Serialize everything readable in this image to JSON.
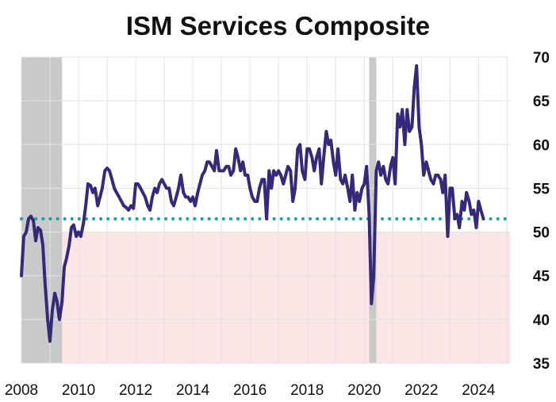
{
  "chart_data": {
    "type": "line",
    "title": "ISM Services Composite",
    "xlabel": "",
    "ylabel": "",
    "xlim": [
      2008.0,
      2025.1
    ],
    "ylim": [
      35,
      70
    ],
    "x_ticks": [
      "2008",
      "2010",
      "2012",
      "2014",
      "2016",
      "2018",
      "2020",
      "2022",
      "2024"
    ],
    "y_ticks": [
      "70",
      "65",
      "60",
      "55",
      "50",
      "45",
      "40",
      "35"
    ],
    "y_axis_side": "right",
    "grid": "vertical and horizontal",
    "reference_line": {
      "value": 51.5,
      "style": "dotted",
      "color": "#1aa3a3"
    },
    "below_threshold_band": {
      "from": 35,
      "to": 50,
      "color": "#fbe6e6"
    },
    "recession_shading": [
      {
        "start": 2008.0,
        "end": 2009.42
      },
      {
        "start": 2020.17,
        "end": 2020.42
      }
    ],
    "series": [
      {
        "color": "#352a7a",
        "points": [
          [
            2008.0,
            45.0
          ],
          [
            2008.08,
            49.5
          ],
          [
            2008.17,
            50.0
          ],
          [
            2008.25,
            51.5
          ],
          [
            2008.33,
            51.8
          ],
          [
            2008.42,
            51.3
          ],
          [
            2008.5,
            49.0
          ],
          [
            2008.58,
            50.5
          ],
          [
            2008.67,
            50.2
          ],
          [
            2008.75,
            48.5
          ],
          [
            2008.83,
            44.0
          ],
          [
            2008.92,
            40.0
          ],
          [
            2009.0,
            37.5
          ],
          [
            2009.08,
            41.0
          ],
          [
            2009.17,
            43.0
          ],
          [
            2009.25,
            42.0
          ],
          [
            2009.33,
            40.0
          ],
          [
            2009.42,
            42.0
          ],
          [
            2009.5,
            46.0
          ],
          [
            2009.58,
            47.0
          ],
          [
            2009.67,
            48.5
          ],
          [
            2009.75,
            50.5
          ],
          [
            2009.83,
            50.8
          ],
          [
            2009.92,
            49.5
          ],
          [
            2010.0,
            50.0
          ],
          [
            2010.08,
            49.5
          ],
          [
            2010.17,
            51.0
          ],
          [
            2010.25,
            53.0
          ],
          [
            2010.33,
            55.5
          ],
          [
            2010.42,
            55.3
          ],
          [
            2010.5,
            54.5
          ],
          [
            2010.58,
            55.0
          ],
          [
            2010.67,
            53.0
          ],
          [
            2010.75,
            54.0
          ],
          [
            2010.83,
            55.0
          ],
          [
            2010.92,
            57.0
          ],
          [
            2011.0,
            57.3
          ],
          [
            2011.08,
            57.0
          ],
          [
            2011.17,
            56.0
          ],
          [
            2011.25,
            55.0
          ],
          [
            2011.33,
            54.5
          ],
          [
            2011.42,
            54.0
          ],
          [
            2011.5,
            53.5
          ],
          [
            2011.58,
            53.0
          ],
          [
            2011.67,
            52.8
          ],
          [
            2011.75,
            52.5
          ],
          [
            2011.83,
            53.0
          ],
          [
            2011.92,
            52.7
          ],
          [
            2012.0,
            55.5
          ],
          [
            2012.08,
            55.5
          ],
          [
            2012.17,
            55.0
          ],
          [
            2012.25,
            54.5
          ],
          [
            2012.33,
            54.0
          ],
          [
            2012.42,
            53.0
          ],
          [
            2012.5,
            52.5
          ],
          [
            2012.58,
            54.0
          ],
          [
            2012.67,
            55.0
          ],
          [
            2012.75,
            54.5
          ],
          [
            2012.83,
            55.5
          ],
          [
            2012.92,
            56.0
          ],
          [
            2013.0,
            55.5
          ],
          [
            2013.08,
            55.0
          ],
          [
            2013.17,
            55.0
          ],
          [
            2013.25,
            53.5
          ],
          [
            2013.33,
            53.0
          ],
          [
            2013.42,
            54.0
          ],
          [
            2013.5,
            55.0
          ],
          [
            2013.58,
            56.5
          ],
          [
            2013.67,
            54.5
          ],
          [
            2013.75,
            54.0
          ],
          [
            2013.83,
            54.0
          ],
          [
            2013.92,
            53.5
          ],
          [
            2014.0,
            54.0
          ],
          [
            2014.08,
            53.0
          ],
          [
            2014.17,
            54.5
          ],
          [
            2014.25,
            55.5
          ],
          [
            2014.33,
            56.5
          ],
          [
            2014.42,
            57.0
          ],
          [
            2014.5,
            58.0
          ],
          [
            2014.58,
            58.0
          ],
          [
            2014.67,
            57.5
          ],
          [
            2014.75,
            57.0
          ],
          [
            2014.83,
            59.3
          ],
          [
            2014.92,
            57.0
          ],
          [
            2015.0,
            57.0
          ],
          [
            2015.08,
            57.0
          ],
          [
            2015.17,
            57.5
          ],
          [
            2015.25,
            57.5
          ],
          [
            2015.33,
            56.5
          ],
          [
            2015.42,
            57.0
          ],
          [
            2015.5,
            59.5
          ],
          [
            2015.58,
            58.5
          ],
          [
            2015.67,
            57.0
          ],
          [
            2015.75,
            58.0
          ],
          [
            2015.83,
            56.5
          ],
          [
            2015.92,
            56.5
          ],
          [
            2016.0,
            55.0
          ],
          [
            2016.08,
            54.0
          ],
          [
            2016.17,
            53.5
          ],
          [
            2016.25,
            53.5
          ],
          [
            2016.33,
            55.0
          ],
          [
            2016.42,
            56.0
          ],
          [
            2016.5,
            56.0
          ],
          [
            2016.58,
            51.5
          ],
          [
            2016.67,
            57.0
          ],
          [
            2016.75,
            55.0
          ],
          [
            2016.83,
            57.0
          ],
          [
            2016.92,
            56.5
          ],
          [
            2017.0,
            57.0
          ],
          [
            2017.08,
            56.5
          ],
          [
            2017.17,
            55.5
          ],
          [
            2017.25,
            56.5
          ],
          [
            2017.33,
            57.5
          ],
          [
            2017.42,
            57.0
          ],
          [
            2017.5,
            53.5
          ],
          [
            2017.58,
            55.0
          ],
          [
            2017.67,
            59.5
          ],
          [
            2017.75,
            60.0
          ],
          [
            2017.83,
            57.0
          ],
          [
            2017.92,
            56.0
          ],
          [
            2018.0,
            59.5
          ],
          [
            2018.08,
            59.5
          ],
          [
            2018.17,
            58.5
          ],
          [
            2018.25,
            57.0
          ],
          [
            2018.33,
            58.5
          ],
          [
            2018.42,
            59.5
          ],
          [
            2018.5,
            55.5
          ],
          [
            2018.58,
            58.5
          ],
          [
            2018.67,
            61.5
          ],
          [
            2018.75,
            60.0
          ],
          [
            2018.83,
            60.5
          ],
          [
            2018.92,
            58.0
          ],
          [
            2019.0,
            56.5
          ],
          [
            2019.08,
            59.5
          ],
          [
            2019.17,
            56.0
          ],
          [
            2019.25,
            55.5
          ],
          [
            2019.33,
            56.5
          ],
          [
            2019.42,
            55.0
          ],
          [
            2019.5,
            53.5
          ],
          [
            2019.58,
            56.5
          ],
          [
            2019.67,
            52.5
          ],
          [
            2019.75,
            54.5
          ],
          [
            2019.83,
            53.5
          ],
          [
            2019.92,
            55.0
          ],
          [
            2020.0,
            55.5
          ],
          [
            2020.08,
            57.5
          ],
          [
            2020.17,
            52.0
          ],
          [
            2020.25,
            41.8
          ],
          [
            2020.33,
            45.0
          ],
          [
            2020.42,
            57.0
          ],
          [
            2020.5,
            58.0
          ],
          [
            2020.58,
            56.5
          ],
          [
            2020.67,
            57.5
          ],
          [
            2020.75,
            56.0
          ],
          [
            2020.83,
            55.5
          ],
          [
            2020.92,
            57.5
          ],
          [
            2021.0,
            58.5
          ],
          [
            2021.08,
            55.5
          ],
          [
            2021.17,
            63.5
          ],
          [
            2021.25,
            62.0
          ],
          [
            2021.33,
            64.0
          ],
          [
            2021.42,
            60.0
          ],
          [
            2021.5,
            64.0
          ],
          [
            2021.58,
            61.5
          ],
          [
            2021.67,
            62.0
          ],
          [
            2021.75,
            66.5
          ],
          [
            2021.83,
            69.0
          ],
          [
            2021.92,
            62.0
          ],
          [
            2022.0,
            60.0
          ],
          [
            2022.08,
            56.5
          ],
          [
            2022.17,
            58.0
          ],
          [
            2022.25,
            57.0
          ],
          [
            2022.33,
            56.0
          ],
          [
            2022.42,
            55.5
          ],
          [
            2022.5,
            56.5
          ],
          [
            2022.58,
            56.5
          ],
          [
            2022.67,
            56.0
          ],
          [
            2022.75,
            54.5
          ],
          [
            2022.83,
            56.5
          ],
          [
            2022.92,
            49.5
          ],
          [
            2023.0,
            55.0
          ],
          [
            2023.08,
            55.0
          ],
          [
            2023.17,
            51.5
          ],
          [
            2023.25,
            52.0
          ],
          [
            2023.33,
            50.5
          ],
          [
            2023.42,
            53.5
          ],
          [
            2023.5,
            52.5
          ],
          [
            2023.58,
            54.5
          ],
          [
            2023.67,
            53.5
          ],
          [
            2023.75,
            52.0
          ],
          [
            2023.83,
            52.5
          ],
          [
            2023.92,
            50.5
          ],
          [
            2024.0,
            53.5
          ],
          [
            2024.08,
            52.5
          ],
          [
            2024.17,
            51.5
          ]
        ]
      }
    ]
  }
}
